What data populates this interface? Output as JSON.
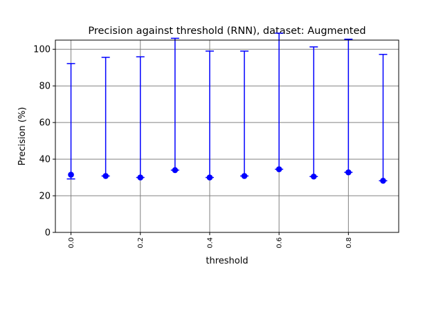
{
  "chart_data": {
    "type": "scatter",
    "title": "Precision against threshold (RNN), dataset: Augmented",
    "xlabel": "threshold",
    "ylabel": "Precision (%)",
    "xlim": [
      -0.045,
      0.945
    ],
    "ylim": [
      0,
      105
    ],
    "grid": true,
    "x_ticks": [
      0.0,
      0.2,
      0.4,
      0.6,
      0.8
    ],
    "x_tick_labels": [
      "0.0",
      "0.2",
      "0.4",
      "0.6",
      "0.8"
    ],
    "y_ticks": [
      0,
      20,
      40,
      60,
      80,
      100
    ],
    "y_tick_labels": [
      "0",
      "20",
      "40",
      "60",
      "80",
      "100"
    ],
    "series": [
      {
        "color": "#0000ff",
        "x": [
          0.0,
          0.1,
          0.2,
          0.3,
          0.4,
          0.5,
          0.6,
          0.7,
          0.8,
          0.9
        ],
        "y": [
          31.5,
          30.8,
          30.0,
          34.0,
          30.0,
          30.8,
          34.5,
          30.5,
          32.8,
          28.2
        ],
        "err_lower": [
          2.3,
          0,
          0,
          0,
          0,
          0,
          0,
          0,
          0,
          0
        ],
        "err_upper": [
          60.7,
          64.8,
          65.9,
          72.0,
          69.0,
          68.2,
          74.3,
          70.8,
          72.7,
          69.0
        ]
      }
    ]
  }
}
